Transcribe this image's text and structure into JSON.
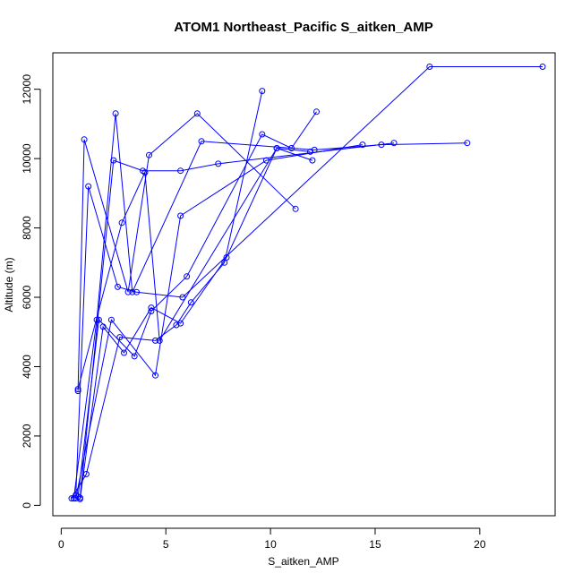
{
  "chart_data": {
    "type": "line",
    "title": "ATOM1 Northeast_Pacific S_aitken_AMP",
    "xlabel": "S_aitken_AMP",
    "ylabel": "Altitude (m)",
    "xlim": [
      -0.4,
      23.6
    ],
    "ylim": [
      -300,
      13050
    ],
    "x_ticks": [
      0,
      5,
      10,
      15,
      20
    ],
    "y_ticks": [
      0,
      2000,
      4000,
      6000,
      8000,
      10000,
      12000
    ],
    "grid": false,
    "legend": "none",
    "color": "#0000ff",
    "marker": "open-circle",
    "x": [
      0.5,
      1.2,
      2.8,
      4.5,
      5.5,
      6.2,
      7.8,
      9.6,
      0.8,
      1.8,
      3.5,
      4.3,
      6.0,
      9.6,
      11.0,
      12.2,
      0.9,
      2.0,
      3.0,
      4.3,
      5.7,
      7.9,
      10.3,
      12.0,
      0.7,
      1.3,
      2.7,
      3.6,
      5.8,
      17.6,
      23.0,
      0.6,
      1.7,
      2.6,
      3.4,
      6.7,
      12.1,
      15.3,
      19.4,
      0.8,
      1.1,
      3.2,
      4.2,
      6.5,
      11.2,
      0.7,
      2.4,
      4.5,
      5.7,
      9.8,
      14.4,
      0.8,
      2.9,
      4.0,
      4.7,
      10.3,
      11.9,
      0.9,
      2.5,
      3.9,
      5.7,
      7.5,
      15.9
    ],
    "y": [
      200,
      900,
      4850,
      4750,
      5200,
      5850,
      7000,
      11950,
      250,
      5350,
      4300,
      5600,
      6600,
      10700,
      10300,
      11350,
      180,
      5150,
      4400,
      5700,
      5250,
      7150,
      10300,
      9950,
      300,
      9200,
      6300,
      6150,
      6000,
      12650,
      12650,
      200,
      5350,
      11300,
      6150,
      10500,
      10250,
      10400,
      10450,
      3300,
      10550,
      6150,
      10100,
      11300,
      8550,
      200,
      5350,
      3750,
      8350,
      9950,
      10400,
      3350,
      8150,
      9600,
      4750,
      10300,
      10200,
      220,
      9950,
      9650,
      9650,
      9850,
      10450
    ],
    "segments": [
      [
        0,
        8
      ],
      [
        8,
        16
      ],
      [
        16,
        24
      ],
      [
        24,
        31
      ],
      [
        31,
        39
      ],
      [
        39,
        45
      ],
      [
        45,
        51
      ],
      [
        51,
        57
      ],
      [
        57,
        63
      ]
    ]
  }
}
